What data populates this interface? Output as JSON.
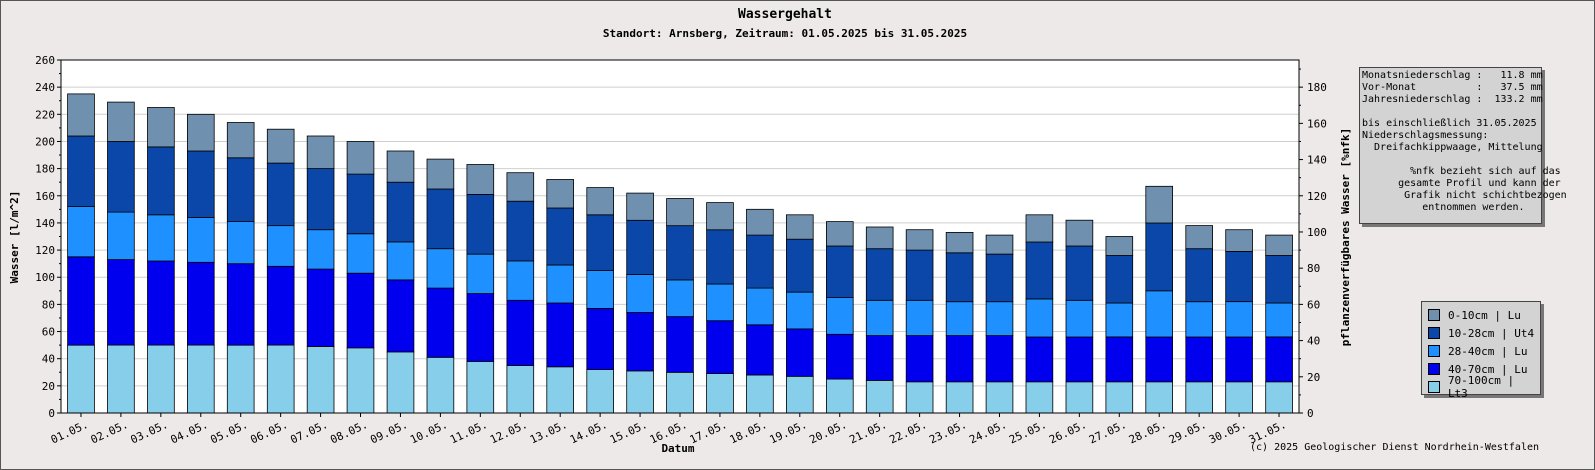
{
  "chart_data": {
    "type": "bar",
    "stacked": true,
    "title": "Wassergehalt",
    "subtitle": "Standort: Arnsberg, Zeitraum: 01.05.2025 bis 31.05.2025",
    "xlabel": "Datum",
    "ylabel": "Wasser [l/m^2]",
    "y2label": "pflanzenverfügbares Wasser [%nfk]",
    "ylim": [
      0,
      260
    ],
    "y2lim": [
      0,
      195
    ],
    "yticks": [
      0,
      20,
      40,
      60,
      80,
      100,
      120,
      140,
      160,
      180,
      200,
      220,
      240,
      260
    ],
    "y2ticks": [
      0,
      20,
      40,
      60,
      80,
      100,
      120,
      140,
      160,
      180
    ],
    "grid": true,
    "legend_position": "bottom-right",
    "categories": [
      "01.05.",
      "02.05.",
      "03.05.",
      "04.05.",
      "05.05.",
      "06.05.",
      "07.05.",
      "08.05.",
      "09.05.",
      "10.05.",
      "11.05.",
      "12.05.",
      "13.05.",
      "14.05.",
      "15.05.",
      "16.05.",
      "17.05.",
      "18.05.",
      "19.05.",
      "20.05.",
      "21.05.",
      "22.05.",
      "23.05.",
      "24.05.",
      "25.05.",
      "26.05.",
      "27.05.",
      "28.05.",
      "29.05.",
      "30.05.",
      "31.05."
    ],
    "series": [
      {
        "name": "70-100cm | Lt3",
        "color": "#87ceeb",
        "values": [
          50,
          50,
          50,
          50,
          50,
          50,
          49,
          48,
          45,
          41,
          38,
          35,
          34,
          32,
          31,
          30,
          29,
          28,
          27,
          25,
          24,
          23,
          23,
          23,
          23,
          23,
          23,
          23,
          23,
          23,
          23
        ]
      },
      {
        "name": "40-70cm | Lu",
        "color": "#0000ee",
        "values": [
          65,
          63,
          62,
          61,
          60,
          58,
          57,
          55,
          53,
          51,
          50,
          48,
          47,
          45,
          43,
          41,
          39,
          37,
          35,
          33,
          33,
          34,
          34,
          34,
          33,
          33,
          33,
          33,
          33,
          33,
          33
        ]
      },
      {
        "name": "28-40cm | Lu",
        "color": "#1e90ff",
        "values": [
          37,
          35,
          34,
          33,
          31,
          30,
          29,
          29,
          28,
          29,
          29,
          29,
          28,
          28,
          28,
          27,
          27,
          27,
          27,
          27,
          26,
          26,
          25,
          25,
          28,
          27,
          25,
          34,
          26,
          26,
          25
        ]
      },
      {
        "name": "10-28cm | Ut4",
        "color": "#0a47a8",
        "values": [
          52,
          52,
          50,
          49,
          47,
          46,
          45,
          44,
          44,
          44,
          44,
          44,
          42,
          41,
          40,
          40,
          40,
          39,
          39,
          38,
          38,
          37,
          36,
          35,
          42,
          40,
          35,
          50,
          39,
          37,
          35
        ]
      },
      {
        "name": "0-10cm | Lu",
        "color": "#7090b0",
        "values": [
          31,
          29,
          29,
          27,
          26,
          25,
          24,
          24,
          23,
          22,
          22,
          21,
          21,
          20,
          20,
          20,
          20,
          19,
          18,
          18,
          16,
          15,
          15,
          14,
          20,
          19,
          14,
          27,
          17,
          16,
          15
        ]
      }
    ],
    "legend_order": [
      "0-10cm | Lu",
      "10-28cm | Ut4",
      "28-40cm | Lu",
      "40-70cm | Lu",
      "70-100cm | Lt3"
    ]
  },
  "info": {
    "lines": [
      "Monatsniederschlag :   11.8 mm",
      "Vor-Monat          :   37.5 mm",
      "Jahresniederschlag :  133.2 mm",
      "",
      "bis einschließlich 31.05.2025",
      "Niederschlagsmessung:",
      "  Dreifachkippwaage, Mittelung",
      "",
      "        %nfk bezieht sich auf das",
      "      gesamte Profil und kann der",
      "       Grafik nicht schichtbezogen",
      "          entnommen werden."
    ]
  },
  "copyright": "(c) 2025 Geologischer Dienst Nordrhein-Westfalen"
}
